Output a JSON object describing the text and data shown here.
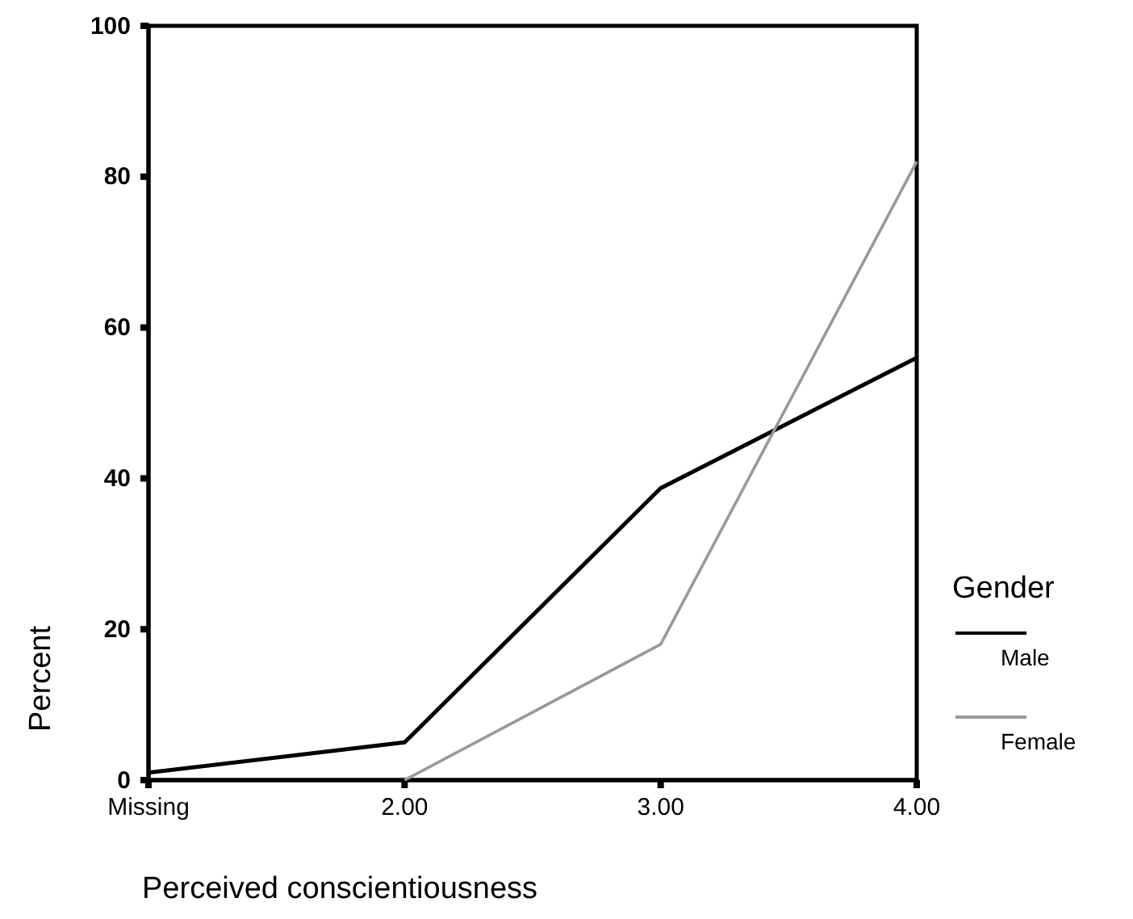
{
  "chart_data": {
    "type": "line",
    "xlabel": "Perceived conscientiousness",
    "ylabel": "Percent",
    "legend_title": "Gender",
    "categories": [
      "Missing",
      "2.00",
      "3.00",
      "4.00"
    ],
    "ylim": [
      0,
      100
    ],
    "yticks": [
      0,
      20,
      40,
      60,
      80,
      100
    ],
    "grid": false,
    "legend": "right",
    "marker": "none",
    "line_style": "solid",
    "series": [
      {
        "name": "Male",
        "color": "#000000",
        "values": [
          1,
          5,
          38.7,
          56
        ]
      },
      {
        "name": "Female",
        "color": "#999999",
        "values": [
          null,
          0,
          18,
          82
        ]
      }
    ]
  }
}
